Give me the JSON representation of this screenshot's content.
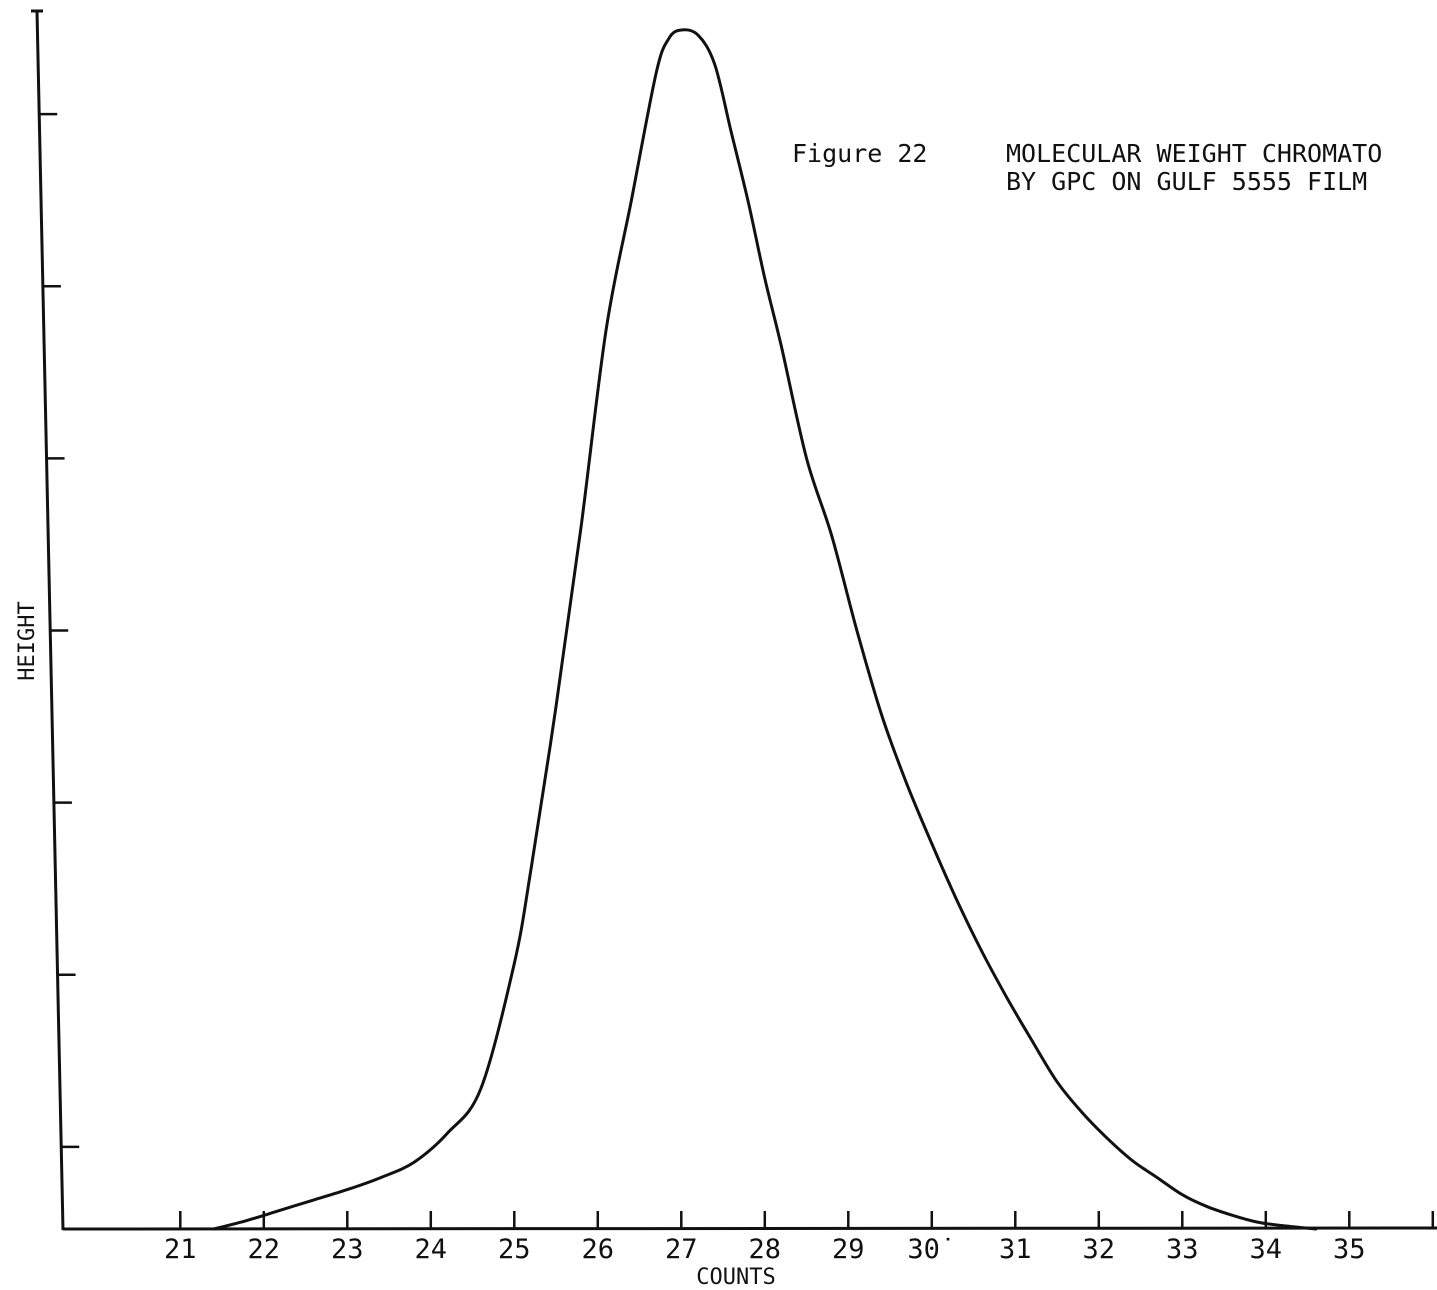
{
  "chart_data": {
    "type": "line",
    "figure_label": "Figure 22",
    "title_lines": [
      "MOLECULAR WEIGHT CHROMATO",
      "BY GPC ON GULF 5555 FILM"
    ],
    "xlabel": "COUNTS",
    "ylabel": "HEIGHT",
    "xlim": [
      20.4,
      36.8
    ],
    "ylim": [
      0,
      7.15
    ],
    "x_ticks": [
      21,
      22,
      23,
      24,
      25,
      26,
      27,
      28,
      29,
      30,
      31,
      32,
      33,
      34,
      35,
      36
    ],
    "x_tick_labels": [
      "21",
      "22",
      "23",
      "24",
      "25",
      "26",
      "27",
      "28",
      "29",
      "30˙",
      "31",
      "32",
      "33",
      "34",
      "35",
      ""
    ],
    "y_ticks": [
      0.5,
      1.5,
      2.5,
      3.5,
      4.5,
      5.5,
      6.5
    ],
    "grid": false,
    "legend": "none",
    "series": [
      {
        "x": [
          21.4,
          21.8,
          22.2,
          22.6,
          23.0,
          23.4,
          23.8,
          24.2,
          24.6,
          25.0,
          25.2,
          25.5,
          25.8,
          26.1,
          26.4,
          26.7,
          26.85,
          27.0,
          27.2,
          27.4,
          27.6,
          27.8,
          28.0,
          28.2,
          28.5,
          28.8,
          29.1,
          29.4,
          29.7,
          30.0,
          30.3,
          30.6,
          30.9,
          31.2,
          31.5,
          31.8,
          32.1,
          32.4,
          32.7,
          33.0,
          33.3,
          33.6,
          33.9,
          34.2,
          34.6
        ],
        "y": [
          0,
          0.05,
          0.11,
          0.17,
          0.23,
          0.3,
          0.39,
          0.56,
          0.82,
          1.55,
          2.1,
          3.05,
          4.1,
          5.25,
          6.0,
          6.75,
          6.95,
          7.0,
          6.97,
          6.8,
          6.4,
          6.0,
          5.55,
          5.15,
          4.5,
          4.05,
          3.5,
          3.0,
          2.6,
          2.25,
          1.92,
          1.62,
          1.35,
          1.1,
          0.86,
          0.68,
          0.53,
          0.4,
          0.3,
          0.2,
          0.13,
          0.08,
          0.04,
          0.02,
          0.0
        ]
      }
    ]
  }
}
